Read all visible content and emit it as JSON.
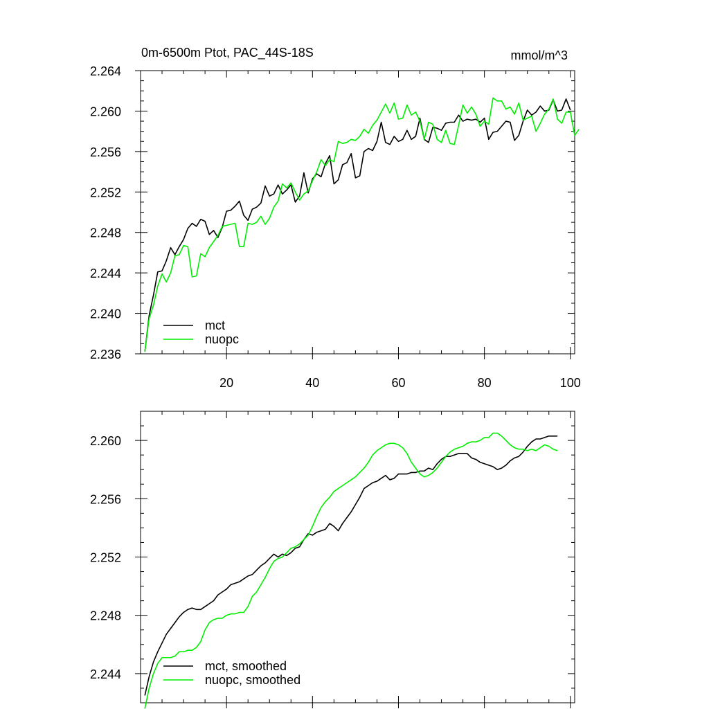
{
  "chart_data": [
    {
      "type": "line",
      "title": "0m-6500m Ptot, PAC_44S-18S",
      "units": "mmol/m^3",
      "xlabel": "",
      "ylabel": "",
      "xlim": [
        0,
        101
      ],
      "ylim": [
        2.236,
        2.264
      ],
      "xticks": [
        20,
        40,
        60,
        80,
        100
      ],
      "yticks": [
        "2.236",
        "2.240",
        "2.244",
        "2.248",
        "2.252",
        "2.256",
        "2.260",
        "2.264"
      ],
      "grid": false,
      "legend_position": "bottom-left",
      "series": [
        {
          "name": "mct",
          "color": "#000000",
          "values": [
            2.2362,
            2.2398,
            2.2418,
            2.2441,
            2.2442,
            2.2452,
            2.2465,
            2.2458,
            2.2466,
            2.2473,
            2.2484,
            2.2489,
            2.2486,
            2.2493,
            2.2491,
            2.2478,
            2.2482,
            2.2475,
            2.2485,
            2.2501,
            2.2502,
            2.2506,
            2.2511,
            2.2497,
            2.2492,
            2.2503,
            2.2505,
            2.2509,
            2.2526,
            2.2516,
            2.2518,
            2.2527,
            2.2518,
            2.2522,
            2.2527,
            2.251,
            2.2516,
            2.2539,
            2.2519,
            2.2533,
            2.2538,
            2.2535,
            2.2548,
            2.2556,
            2.2528,
            2.2532,
            2.2547,
            2.2549,
            2.2558,
            2.2534,
            2.2536,
            2.256,
            2.2563,
            2.2561,
            2.257,
            2.2589,
            2.2569,
            2.2567,
            2.2575,
            2.257,
            2.2572,
            2.2581,
            2.2572,
            2.2575,
            2.2593,
            2.2572,
            2.2569,
            2.2584,
            2.2583,
            2.2581,
            2.2588,
            2.2589,
            2.2589,
            2.2596,
            2.259,
            2.2592,
            2.2591,
            2.2592,
            2.2589,
            2.2593,
            2.2572,
            2.2579,
            2.258,
            2.2585,
            2.259,
            2.2589,
            2.2571,
            2.2576,
            2.259,
            2.2601,
            2.2596,
            2.2599,
            2.2605,
            2.26,
            2.2601,
            2.2611,
            2.26,
            2.2601,
            2.2612,
            2.2601
          ]
        },
        {
          "name": "nuopc",
          "color": "#00ee00",
          "values": [
            2.2362,
            2.2395,
            2.2408,
            2.2427,
            2.2439,
            2.2431,
            2.244,
            2.2457,
            2.2458,
            2.2467,
            2.2466,
            2.2436,
            2.2437,
            2.2459,
            2.2456,
            2.2465,
            2.2471,
            2.2477,
            2.2486,
            2.2487,
            2.2488,
            2.2489,
            2.2466,
            2.2466,
            2.2489,
            2.2488,
            2.249,
            2.2496,
            2.2488,
            2.2494,
            2.2505,
            2.2511,
            2.2528,
            2.2524,
            2.2529,
            2.252,
            2.2512,
            2.2518,
            2.2521,
            2.2531,
            2.254,
            2.2552,
            2.2546,
            2.2552,
            2.255,
            2.257,
            2.2568,
            2.2569,
            2.2572,
            2.2571,
            2.2575,
            2.2582,
            2.2578,
            2.2586,
            2.2591,
            2.2599,
            2.2607,
            2.2598,
            2.2608,
            2.2592,
            2.2593,
            2.2606,
            2.2596,
            2.2599,
            2.259,
            2.2572,
            2.2589,
            2.2587,
            2.2572,
            2.2569,
            2.2581,
            2.2568,
            2.2567,
            2.2586,
            2.2606,
            2.2598,
            2.2604,
            2.2597,
            2.2585,
            2.259,
            2.2587,
            2.2613,
            2.261,
            2.261,
            2.2602,
            2.2604,
            2.2597,
            2.2608,
            2.2591,
            2.2593,
            2.2595,
            2.258,
            2.2588,
            2.2597,
            2.2602,
            2.2612,
            2.2592,
            2.2588,
            2.2599,
            2.2599,
            2.2576,
            2.2582
          ]
        }
      ]
    },
    {
      "type": "line",
      "title": "",
      "xlabel": "",
      "ylabel": "",
      "xlim": [
        0,
        101
      ],
      "ylim": [
        2.242,
        2.262
      ],
      "yticks": [
        "2.244",
        "2.248",
        "2.252",
        "2.256",
        "2.260"
      ],
      "grid": false,
      "legend_position": "bottom-left",
      "series": [
        {
          "name": "mct, smoothed",
          "color": "#000000",
          "values": [
            2.2425,
            2.2438,
            2.2448,
            2.2455,
            2.2461,
            2.2467,
            2.2471,
            2.2475,
            2.2479,
            2.2482,
            2.2484,
            2.2485,
            2.2484,
            2.2484,
            2.2486,
            2.2488,
            2.249,
            2.2494,
            2.2496,
            2.2498,
            2.2501,
            2.2502,
            2.2503,
            2.2505,
            2.2507,
            2.2508,
            2.2511,
            2.2514,
            2.2516,
            2.2519,
            2.2522,
            2.252,
            2.2522,
            2.2521,
            2.2523,
            2.2526,
            2.2527,
            2.2532,
            2.2536,
            2.2535,
            2.2537,
            2.2538,
            2.2539,
            2.2543,
            2.2541,
            2.2538,
            2.2543,
            2.2547,
            2.2551,
            2.2556,
            2.2561,
            2.2567,
            2.2569,
            2.2571,
            2.2572,
            2.2574,
            2.2576,
            2.2573,
            2.2574,
            2.2577,
            2.2577,
            2.2577,
            2.2578,
            2.2578,
            2.2579,
            2.2579,
            2.2581,
            2.258,
            2.2584,
            2.2587,
            2.2589,
            2.2589,
            2.259,
            2.2591,
            2.2591,
            2.2591,
            2.2588,
            2.2587,
            2.2585,
            2.2584,
            2.2583,
            2.2582,
            2.258,
            2.2581,
            2.2583,
            2.2586,
            2.2588,
            2.2589,
            2.2592,
            2.2596,
            2.2599,
            2.2601,
            2.2601,
            2.2602,
            2.2603,
            2.2603,
            2.2603
          ]
        },
        {
          "name": "nuopc, smoothed",
          "color": "#00ee00",
          "values": [
            2.2416,
            2.243,
            2.244,
            2.2447,
            2.2451,
            2.2451,
            2.2451,
            2.2452,
            2.2455,
            2.2455,
            2.2456,
            2.2456,
            2.2458,
            2.2462,
            2.247,
            2.2475,
            2.2477,
            2.2478,
            2.2478,
            2.248,
            2.2481,
            2.2481,
            2.2482,
            2.2482,
            2.2486,
            2.2493,
            2.2496,
            2.2501,
            2.2506,
            2.2512,
            2.2517,
            2.2519,
            2.252,
            2.2523,
            2.2526,
            2.2527,
            2.2529,
            2.2532,
            2.2535,
            2.2541,
            2.2548,
            2.2554,
            2.2558,
            2.2561,
            2.2565,
            2.2567,
            2.2569,
            2.2571,
            2.2573,
            2.2575,
            2.2578,
            2.2581,
            2.2585,
            2.259,
            2.2593,
            2.2595,
            2.2597,
            2.2598,
            2.2598,
            2.2597,
            2.2595,
            2.2591,
            2.2585,
            2.2581,
            2.2577,
            2.2575,
            2.2576,
            2.2578,
            2.2581,
            2.2585,
            2.2589,
            2.2592,
            2.2594,
            2.2595,
            2.2596,
            2.2598,
            2.2599,
            2.2599,
            2.26,
            2.2602,
            2.2602,
            2.2605,
            2.2605,
            2.2603,
            2.26,
            2.2597,
            2.2595,
            2.2594,
            2.2594,
            2.2593,
            2.2594,
            2.2593,
            2.2595,
            2.2597,
            2.2596,
            2.2594,
            2.2593
          ]
        }
      ]
    }
  ]
}
